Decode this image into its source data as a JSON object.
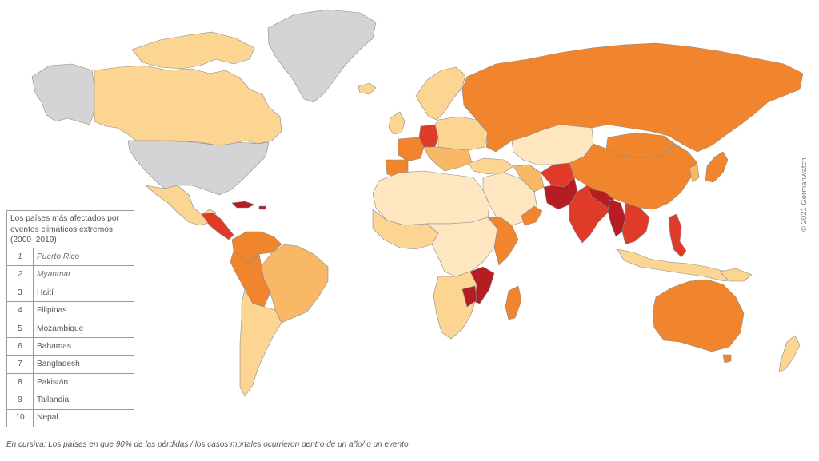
{
  "legend": {
    "title": "Los países más afectados por eventos climáticos extremos (2000–2019)",
    "rows": [
      {
        "rank": "1",
        "country": "Puerto Rico",
        "italic": true
      },
      {
        "rank": "2",
        "country": "Myanmar",
        "italic": true
      },
      {
        "rank": "3",
        "country": "Haití",
        "italic": false
      },
      {
        "rank": "4",
        "country": "Filipinas",
        "italic": false
      },
      {
        "rank": "5",
        "country": "Mozambique",
        "italic": false
      },
      {
        "rank": "6",
        "country": "Bahamas",
        "italic": false
      },
      {
        "rank": "7",
        "country": "Bangladesh",
        "italic": false
      },
      {
        "rank": "8",
        "country": "Pakistán",
        "italic": false
      },
      {
        "rank": "9",
        "country": "Tailandia",
        "italic": false
      },
      {
        "rank": "10",
        "country": "Nepal",
        "italic": false
      }
    ]
  },
  "footnote": "En cursiva: Los países en que 90% de las pérdidas / los casos mortales ocurrieron dentro de un año/ o un evento.",
  "copyright": "© 2021 Germanwatch",
  "colors": {
    "no_data": "#d4d4d6",
    "lightest": "#fde6c0",
    "light": "#fcd592",
    "mid_light": "#f8b866",
    "mid": "#f0852d",
    "high": "#e03b28",
    "highest": "#b51d22",
    "border": "#8a8a8a"
  }
}
